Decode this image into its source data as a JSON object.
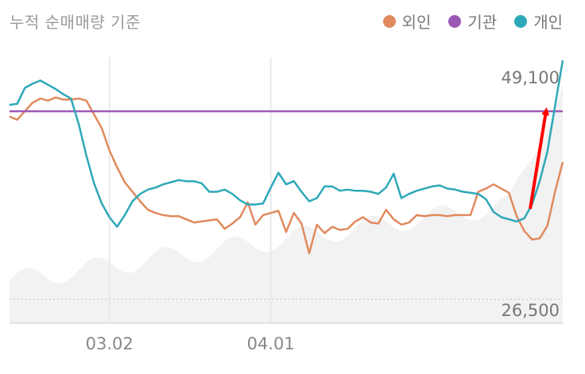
{
  "chart_data": {
    "type": "line",
    "title": "누적 순매매량 기준",
    "legend": [
      {
        "name": "외인",
        "color": "#E08A5E"
      },
      {
        "name": "기관",
        "color": "#9B59B6"
      },
      {
        "name": "개인",
        "color": "#2EA8B8"
      }
    ],
    "x_ticks": [
      {
        "index": 13,
        "label": "03.02"
      },
      {
        "index": 34,
        "label": "04.01"
      }
    ],
    "price_labels": {
      "high": "49,100",
      "low": "26,500"
    },
    "grid": "vertical",
    "series": [
      {
        "name": "외인",
        "color": "#E08A5E",
        "values": [
          195,
          192,
          200,
          208,
          212,
          210,
          213,
          211,
          211,
          212,
          210,
          197,
          184,
          163,
          147,
          133,
          124,
          115,
          107,
          104,
          102,
          101,
          101,
          98,
          95,
          96,
          97,
          98,
          89,
          94,
          100,
          114,
          93,
          102,
          104,
          106,
          86,
          104,
          94,
          66,
          93,
          85,
          91,
          88,
          89,
          96,
          100,
          95,
          94,
          107,
          98,
          93,
          95,
          102,
          101,
          102,
          102,
          101,
          102,
          102,
          102,
          124,
          127,
          131,
          127,
          123,
          101,
          87,
          79,
          80,
          92,
          124,
          152
        ]
      },
      {
        "name": "기관",
        "color": "#9B59B6",
        "values": [
          200,
          200,
          200,
          200,
          200,
          200,
          200,
          200,
          200,
          200,
          200,
          200,
          200,
          200,
          200,
          200,
          200,
          200,
          200,
          200,
          200,
          200,
          200,
          200,
          200,
          200,
          200,
          200,
          200,
          200,
          200,
          200,
          200,
          200,
          200,
          200,
          200,
          200,
          200,
          200,
          200,
          200,
          200,
          200,
          200,
          200,
          200,
          200,
          200,
          200,
          200,
          200,
          200,
          200,
          200,
          200,
          200,
          200,
          200,
          200,
          200,
          200,
          200,
          200,
          200,
          200,
          200,
          200,
          200,
          200,
          200,
          200,
          200
        ]
      },
      {
        "name": "개인",
        "color": "#2EA8B8",
        "values": [
          206,
          207,
          222,
          226,
          229,
          225,
          221,
          216,
          212,
          188,
          158,
          132,
          113,
          100,
          91,
          102,
          115,
          122,
          126,
          128,
          131,
          133,
          135,
          134,
          134,
          132,
          124,
          124,
          126,
          122,
          116,
          112,
          112,
          113,
          128,
          142,
          131,
          134,
          124,
          115,
          118,
          129,
          129,
          125,
          126,
          125,
          125,
          124,
          122,
          128,
          141,
          118,
          122,
          125,
          127,
          129,
          130,
          127,
          126,
          124,
          123,
          122,
          117,
          105,
          100,
          98,
          96,
          99,
          112,
          134,
          162,
          205,
          248
        ]
      }
    ]
  }
}
